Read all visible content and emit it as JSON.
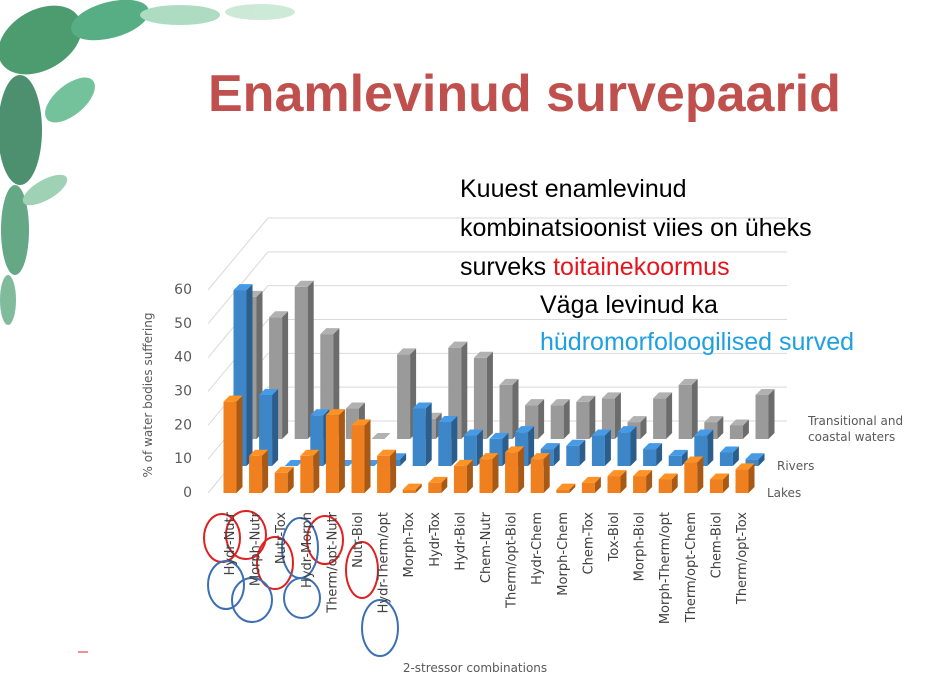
{
  "title": "Enamlevinud survepaarid",
  "annotations": [
    {
      "text": "Kuuest enamlevinud",
      "color": "#000000"
    },
    {
      "text": "kombinatsioonist viies on üheks",
      "color": "#000000"
    },
    {
      "text": "surveks ",
      "color": "#000000"
    },
    {
      "text": "toitainekoormus",
      "color": "#e8141c"
    },
    {
      "text": "Väga levinud ka",
      "color": "#000000"
    },
    {
      "text": "hüdromorfoloogilised surved",
      "color": "#1ea0e0"
    }
  ],
  "chart_data": {
    "type": "bar3d",
    "ylabel": "% of water bodies suffering",
    "xlabel": "2-stressor combinations",
    "categories": [
      "Hydr-Nutr",
      "Morph-Nutr",
      "Nutr-Tox",
      "Hydr-Morph",
      "Therm/opt-Nutr",
      "Nutr-Biol",
      "Hydr-Therm/opt",
      "Morph-Tox",
      "Hydr-Tox",
      "Hydr-Biol",
      "Chem-Nutr",
      "Therm/opt-Biol",
      "Hydr-Chem",
      "Morph-Chem",
      "Chem-Tox",
      "Tox-Biol",
      "Morph-Biol",
      "Morph-Therm/opt",
      "Therm/opt-Chem",
      "Chem-Biol",
      "Therm/opt-Tox"
    ],
    "series": [
      {
        "name": "Lakes",
        "color": "#f07f1f",
        "values": [
          27,
          11,
          6,
          11,
          23,
          20,
          11,
          1,
          3,
          8,
          10,
          12,
          10,
          1,
          3,
          5,
          5,
          4,
          9,
          4,
          7
        ]
      },
      {
        "name": "Rivers",
        "color": "#3d86c8",
        "values": [
          52,
          21,
          0,
          15,
          0,
          0,
          2,
          17,
          13,
          9,
          8,
          10,
          5,
          6,
          9,
          10,
          5,
          3,
          9,
          4,
          2
        ]
      },
      {
        "name": "Transitional and coastal waters",
        "color": "#9a9a9a",
        "values": [
          42,
          36,
          45,
          31,
          9,
          0,
          25,
          6,
          27,
          24,
          16,
          10,
          10,
          11,
          12,
          5,
          12,
          16,
          5,
          4,
          13
        ]
      }
    ],
    "ylim": [
      0,
      60
    ],
    "yticks": [
      0,
      10,
      20,
      30,
      40,
      50,
      60
    ],
    "grid": true
  }
}
